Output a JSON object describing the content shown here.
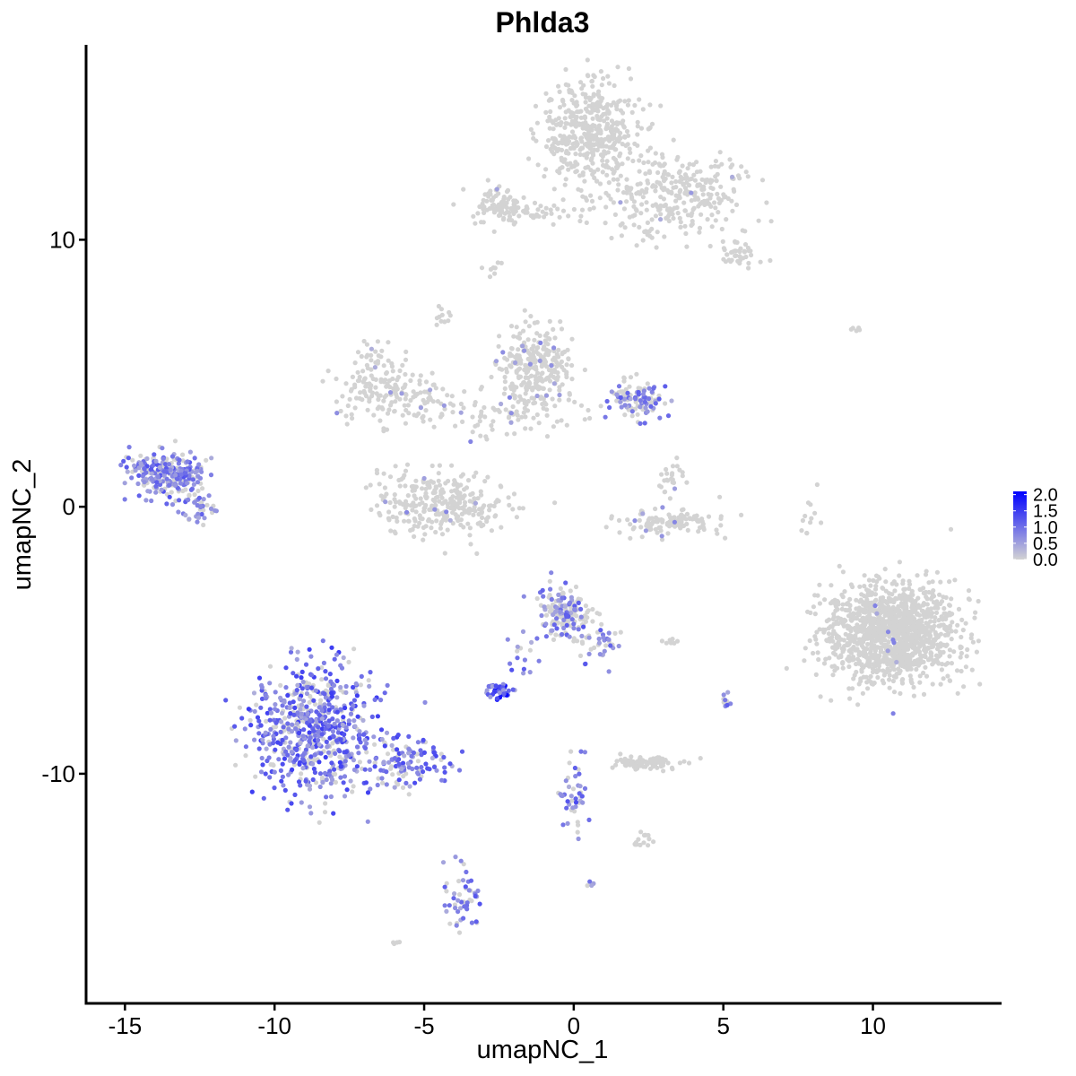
{
  "chart_data": {
    "type": "scatter",
    "title": "Phlda3",
    "xlabel": "umapNC_1",
    "ylabel": "umapNC_2",
    "xlim": [
      -16.3,
      14.3
    ],
    "ylim": [
      -18.6,
      17.3
    ],
    "x_ticks": [
      -15,
      -10,
      -5,
      0,
      5,
      10
    ],
    "x_tick_labels": [
      "-15",
      "-10",
      "-5",
      "0",
      "5",
      "10"
    ],
    "y_ticks": [
      -10,
      0,
      10
    ],
    "y_tick_labels": [
      "-10",
      "0",
      "10"
    ],
    "grid": false,
    "legend_position": "right",
    "colorbar": {
      "low_color": "#d3d3d3",
      "high_color": "#0000ff",
      "range": [
        0,
        2.1
      ],
      "ticks": [
        0.0,
        0.5,
        1.0,
        1.5,
        2.0
      ],
      "tick_labels": [
        "0.0",
        "0.5",
        "1.0",
        "1.5",
        "2.0"
      ]
    },
    "point_color_low": "#d3d3d3",
    "point_color_high": "#0000ff",
    "clusters": [
      {
        "cx": 0.5,
        "cy": 14.0,
        "sx": 1.1,
        "sy": 1.4,
        "n": 450,
        "expr_frac": 0.0,
        "expr_max": 0.6
      },
      {
        "cx": 3.3,
        "cy": 11.7,
        "sx": 1.6,
        "sy": 1.0,
        "n": 300,
        "expr_frac": 0.02,
        "expr_max": 0.8
      },
      {
        "cx": 5.6,
        "cy": 9.5,
        "sx": 0.5,
        "sy": 0.4,
        "n": 40,
        "expr_frac": 0.0,
        "expr_max": 0.5
      },
      {
        "cx": -2.6,
        "cy": 11.3,
        "sx": 0.7,
        "sy": 0.5,
        "n": 80,
        "expr_frac": 0.02,
        "expr_max": 0.8
      },
      {
        "cx": -1.2,
        "cy": 11.0,
        "sx": 1.2,
        "sy": 0.2,
        "n": 40,
        "expr_frac": 0.0,
        "expr_max": 0.5
      },
      {
        "cx": -6.5,
        "cy": 4.7,
        "sx": 0.9,
        "sy": 0.8,
        "n": 120,
        "expr_frac": 0.02,
        "expr_max": 0.7
      },
      {
        "cx": -5.5,
        "cy": 3.8,
        "sx": 1.4,
        "sy": 0.6,
        "n": 80,
        "expr_frac": 0.02,
        "expr_max": 0.7
      },
      {
        "cx": -4.4,
        "cy": 0.1,
        "sx": 1.4,
        "sy": 0.8,
        "n": 300,
        "expr_frac": 0.02,
        "expr_max": 0.8
      },
      {
        "cx": -1.2,
        "cy": 5.2,
        "sx": 0.8,
        "sy": 1.0,
        "n": 260,
        "expr_frac": 0.03,
        "expr_max": 0.8
      },
      {
        "cx": -2.0,
        "cy": 3.5,
        "sx": 1.3,
        "sy": 0.6,
        "n": 90,
        "expr_frac": 0.03,
        "expr_max": 0.8
      },
      {
        "cx": 2.0,
        "cy": 4.0,
        "sx": 0.6,
        "sy": 0.5,
        "n": 110,
        "expr_frac": 0.5,
        "expr_max": 1.2
      },
      {
        "cx": 3.3,
        "cy": -0.6,
        "sx": 1.1,
        "sy": 0.3,
        "n": 120,
        "expr_frac": 0.02,
        "expr_max": 0.8
      },
      {
        "cx": 3.2,
        "cy": 1.0,
        "sx": 0.3,
        "sy": 0.5,
        "n": 25,
        "expr_frac": 0.1,
        "expr_max": 0.8
      },
      {
        "cx": -13.6,
        "cy": 1.2,
        "sx": 0.8,
        "sy": 0.6,
        "n": 260,
        "expr_frac": 0.65,
        "expr_max": 1.3
      },
      {
        "cx": -12.6,
        "cy": 0.0,
        "sx": 0.5,
        "sy": 0.5,
        "n": 40,
        "expr_frac": 0.5,
        "expr_max": 1.2
      },
      {
        "cx": -8.7,
        "cy": -8.3,
        "sx": 1.3,
        "sy": 1.6,
        "n": 650,
        "expr_frac": 0.75,
        "expr_max": 1.5
      },
      {
        "cx": -5.6,
        "cy": -9.5,
        "sx": 1.0,
        "sy": 0.6,
        "n": 130,
        "expr_frac": 0.75,
        "expr_max": 1.4
      },
      {
        "cx": -3.8,
        "cy": -14.6,
        "sx": 0.4,
        "sy": 0.9,
        "n": 50,
        "expr_frac": 0.7,
        "expr_max": 1.3
      },
      {
        "cx": -0.3,
        "cy": -3.9,
        "sx": 0.6,
        "sy": 0.6,
        "n": 170,
        "expr_frac": 0.4,
        "expr_max": 1.2
      },
      {
        "cx": 0.9,
        "cy": -5.0,
        "sx": 0.6,
        "sy": 0.5,
        "n": 40,
        "expr_frac": 0.5,
        "expr_max": 1.3
      },
      {
        "cx": -1.6,
        "cy": -5.8,
        "sx": 0.4,
        "sy": 0.5,
        "n": 15,
        "expr_frac": 0.7,
        "expr_max": 1.3
      },
      {
        "cx": -2.5,
        "cy": -6.9,
        "sx": 0.3,
        "sy": 0.2,
        "n": 45,
        "expr_frac": 0.9,
        "expr_max": 2.1
      },
      {
        "cx": 0.0,
        "cy": -11.0,
        "sx": 0.4,
        "sy": 0.9,
        "n": 45,
        "expr_frac": 0.6,
        "expr_max": 1.4
      },
      {
        "cx": 2.5,
        "cy": -9.6,
        "sx": 0.7,
        "sy": 0.2,
        "n": 80,
        "expr_frac": 0.03,
        "expr_max": 0.8
      },
      {
        "cx": 2.4,
        "cy": -12.5,
        "sx": 0.2,
        "sy": 0.2,
        "n": 15,
        "expr_frac": 0.0,
        "expr_max": 0.5
      },
      {
        "cx": 3.2,
        "cy": -5.0,
        "sx": 0.3,
        "sy": 0.1,
        "n": 8,
        "expr_frac": 0.0,
        "expr_max": 0.5
      },
      {
        "cx": 5.1,
        "cy": -7.3,
        "sx": 0.1,
        "sy": 0.3,
        "n": 10,
        "expr_frac": 0.5,
        "expr_max": 1.2
      },
      {
        "cx": 10.6,
        "cy": -4.7,
        "sx": 1.4,
        "sy": 1.2,
        "n": 1300,
        "expr_frac": 0.01,
        "expr_max": 0.9
      },
      {
        "cx": 7.9,
        "cy": -0.4,
        "sx": 0.2,
        "sy": 0.6,
        "n": 12,
        "expr_frac": 0.0,
        "expr_max": 0.5
      },
      {
        "cx": 9.5,
        "cy": 6.7,
        "sx": 0.2,
        "sy": 0.1,
        "n": 5,
        "expr_frac": 0.0,
        "expr_max": 0.5
      },
      {
        "cx": -4.4,
        "cy": 7.1,
        "sx": 0.2,
        "sy": 0.4,
        "n": 12,
        "expr_frac": 0.0,
        "expr_max": 0.5
      },
      {
        "cx": -2.7,
        "cy": 8.9,
        "sx": 0.2,
        "sy": 0.2,
        "n": 8,
        "expr_frac": 0.0,
        "expr_max": 0.5
      },
      {
        "cx": 0.6,
        "cy": -14.1,
        "sx": 0.1,
        "sy": 0.1,
        "n": 4,
        "expr_frac": 0.8,
        "expr_max": 1.0
      },
      {
        "cx": -6.0,
        "cy": -16.3,
        "sx": 0.1,
        "sy": 0.1,
        "n": 4,
        "expr_frac": 0.1,
        "expr_max": 0.6
      }
    ]
  }
}
